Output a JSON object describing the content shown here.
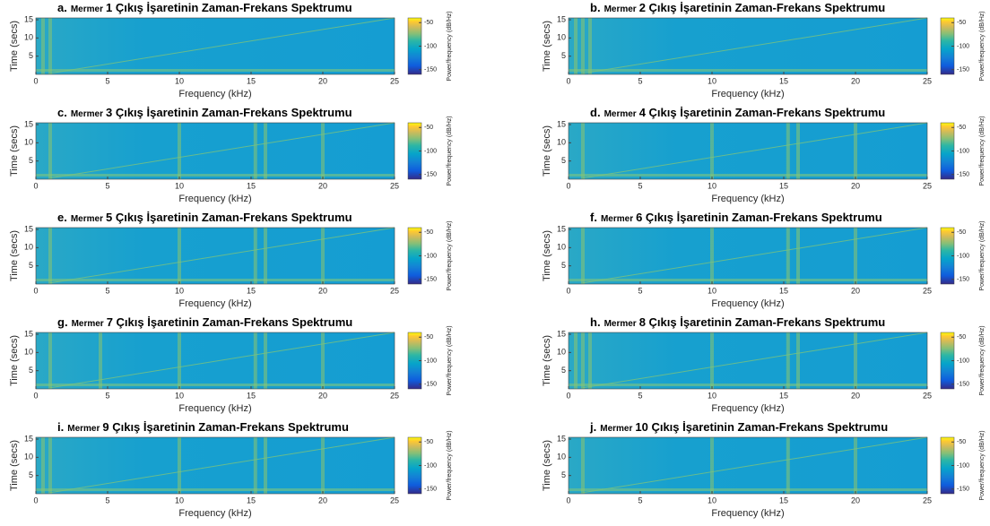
{
  "chart_data": [
    {
      "type": "spectrogram",
      "panel": "a.",
      "title_word": "Mermer",
      "title": "1 Çıkış İşaretinin Zaman-Frekans Spektrumu",
      "xlabel": "Frequency (kHz)",
      "ylabel": "Time (secs)",
      "xlim": [
        0,
        25
      ],
      "xticks": [
        0,
        5,
        10,
        15,
        20,
        25
      ],
      "ylim": [
        0,
        15.5
      ],
      "yticks": [
        5,
        10,
        15
      ],
      "colorbar_label": "Power/frequency (dB/Hz)",
      "clim": [
        -160,
        -40
      ],
      "cticks": [
        -50,
        -100,
        -150
      ],
      "bands": [
        0.5,
        1
      ],
      "chirp_x": [
        1,
        25
      ],
      "chirp_y": [
        0.3,
        15.5
      ]
    },
    {
      "type": "spectrogram",
      "panel": "b.",
      "title_word": "Mermer",
      "title": "2 Çıkış İşaretinin Zaman-Frekans Spektrumu",
      "xlabel": "Frequency (kHz)",
      "ylabel": "Time (secs)",
      "xlim": [
        0,
        25
      ],
      "xticks": [
        0,
        5,
        10,
        15,
        20,
        25
      ],
      "ylim": [
        0,
        15.5
      ],
      "yticks": [
        5,
        10,
        15
      ],
      "colorbar_label": "Power/frequency (dB/Hz)",
      "clim": [
        -160,
        -40
      ],
      "cticks": [
        -50,
        -100,
        -150
      ],
      "bands": [
        0.5,
        1,
        1.5
      ],
      "chirp_x": [
        1,
        25
      ],
      "chirp_y": [
        0.3,
        15.5
      ]
    },
    {
      "type": "spectrogram",
      "panel": "c.",
      "title_word": "Mermer",
      "title": "3 Çıkış İşaretinin Zaman-Frekans Spektrumu",
      "xlabel": "Frequency (kHz)",
      "ylabel": "Time (secs)",
      "xlim": [
        0,
        25
      ],
      "xticks": [
        0,
        5,
        10,
        15,
        20,
        25
      ],
      "ylim": [
        0,
        15.5
      ],
      "yticks": [
        5,
        10,
        15
      ],
      "colorbar_label": "Power/frequency (dB/Hz)",
      "clim": [
        -160,
        -40
      ],
      "cticks": [
        -50,
        -100,
        -150
      ],
      "bands": [
        1,
        10,
        15.3,
        16,
        20
      ],
      "chirp_x": [
        1,
        25
      ],
      "chirp_y": [
        0.3,
        15.5
      ]
    },
    {
      "type": "spectrogram",
      "panel": "d.",
      "title_word": "Mermer",
      "title": "4 Çıkış İşaretinin Zaman-Frekans Spektrumu",
      "xlabel": "Frequency (kHz)",
      "ylabel": "Time (secs)",
      "xlim": [
        0,
        25
      ],
      "xticks": [
        0,
        5,
        10,
        15,
        20,
        25
      ],
      "ylim": [
        0,
        15.5
      ],
      "yticks": [
        5,
        10,
        15
      ],
      "colorbar_label": "Power/frequency (dB/Hz)",
      "clim": [
        -160,
        -40
      ],
      "cticks": [
        -50,
        -100,
        -150
      ],
      "bands": [
        1,
        10,
        15.3,
        16,
        20
      ],
      "chirp_x": [
        1,
        25
      ],
      "chirp_y": [
        0.3,
        15.5
      ]
    },
    {
      "type": "spectrogram",
      "panel": "e.",
      "title_word": "Mermer",
      "title": "5 Çıkış İşaretinin Zaman-Frekans Spektrumu",
      "xlabel": "Frequency (kHz)",
      "ylabel": "Time (secs)",
      "xlim": [
        0,
        25
      ],
      "xticks": [
        0,
        5,
        10,
        15,
        20,
        25
      ],
      "ylim": [
        0,
        15.5
      ],
      "yticks": [
        5,
        10,
        15
      ],
      "colorbar_label": "Power/frequency (dB/Hz)",
      "clim": [
        -160,
        -40
      ],
      "cticks": [
        -50,
        -100,
        -150
      ],
      "bands": [
        1,
        10,
        15.3,
        16,
        20
      ],
      "chirp_x": [
        1,
        25
      ],
      "chirp_y": [
        0.3,
        15.5
      ]
    },
    {
      "type": "spectrogram",
      "panel": "f.",
      "title_word": "Mermer",
      "title": "6 Çıkış İşaretinin Zaman-Frekans Spektrumu",
      "xlabel": "Frequency (kHz)",
      "ylabel": "Time (secs)",
      "xlim": [
        0,
        25
      ],
      "xticks": [
        0,
        5,
        10,
        15,
        20,
        25
      ],
      "ylim": [
        0,
        15.5
      ],
      "yticks": [
        5,
        10,
        15
      ],
      "colorbar_label": "Power/frequency (dB/Hz)",
      "clim": [
        -160,
        -40
      ],
      "cticks": [
        -50,
        -100,
        -150
      ],
      "bands": [
        1,
        10,
        15.3,
        16,
        20
      ],
      "chirp_x": [
        1,
        25
      ],
      "chirp_y": [
        0.3,
        15.5
      ]
    },
    {
      "type": "spectrogram",
      "panel": "g.",
      "title_word": "Mermer",
      "title": "7 Çıkış İşaretinin Zaman-Frekans Spektrumu",
      "xlabel": "Frequency (kHz)",
      "ylabel": "Time (secs)",
      "xlim": [
        0,
        25
      ],
      "xticks": [
        0,
        5,
        10,
        15,
        20,
        25
      ],
      "ylim": [
        0,
        15.5
      ],
      "yticks": [
        5,
        10,
        15
      ],
      "colorbar_label": "Power/frequency (dB/Hz)",
      "clim": [
        -160,
        -40
      ],
      "cticks": [
        -50,
        -100,
        -150
      ],
      "bands": [
        1,
        4.5,
        10,
        15.3,
        16,
        20
      ],
      "chirp_x": [
        1,
        25
      ],
      "chirp_y": [
        0.3,
        15.5
      ]
    },
    {
      "type": "spectrogram",
      "panel": "h.",
      "title_word": "Mermer",
      "title": "8 Çıkış İşaretinin Zaman-Frekans Spektrumu",
      "xlabel": "Frequency (kHz)",
      "ylabel": "Time (secs)",
      "xlim": [
        0,
        25
      ],
      "xticks": [
        0,
        5,
        10,
        15,
        20,
        25
      ],
      "ylim": [
        0,
        15.5
      ],
      "yticks": [
        5,
        10,
        15
      ],
      "colorbar_label": "Power/frequency (dB/Hz)",
      "clim": [
        -160,
        -40
      ],
      "cticks": [
        -50,
        -100,
        -150
      ],
      "bands": [
        0.5,
        1,
        1.5,
        10,
        15.3,
        16,
        20
      ],
      "chirp_x": [
        1,
        25
      ],
      "chirp_y": [
        0.3,
        15.5
      ]
    },
    {
      "type": "spectrogram",
      "panel": "i.",
      "title_word": "Mermer",
      "title": "9 Çıkış İşaretinin Zaman-Frekans Spektrumu",
      "xlabel": "Frequency (kHz)",
      "ylabel": "Time (secs)",
      "xlim": [
        0,
        25
      ],
      "xticks": [
        0,
        5,
        10,
        15,
        20,
        25
      ],
      "ylim": [
        0,
        15.5
      ],
      "yticks": [
        5,
        10,
        15
      ],
      "colorbar_label": "Power/frequency (dB/Hz)",
      "clim": [
        -160,
        -40
      ],
      "cticks": [
        -50,
        -100,
        -150
      ],
      "bands": [
        0.5,
        1,
        10,
        15.3,
        16,
        20
      ],
      "chirp_x": [
        1,
        25
      ],
      "chirp_y": [
        0.3,
        15.5
      ]
    },
    {
      "type": "spectrogram",
      "panel": "j.",
      "title_word": "Mermer",
      "title": "10 Çıkış İşaretinin Zaman-Frekans Spektrumu",
      "xlabel": "Frequency (kHz)",
      "ylabel": "Time (secs)",
      "xlim": [
        0,
        25
      ],
      "xticks": [
        0,
        5,
        10,
        15,
        20,
        25
      ],
      "ylim": [
        0,
        15.5
      ],
      "yticks": [
        5,
        10,
        15
      ],
      "colorbar_label": "Power/frequency (dB/Hz)",
      "clim": [
        -160,
        -40
      ],
      "cticks": [
        -50,
        -100,
        -150
      ],
      "bands": [
        1,
        10,
        15.3,
        20
      ],
      "chirp_x": [
        1,
        25
      ],
      "chirp_y": [
        0.3,
        15.5
      ]
    }
  ]
}
